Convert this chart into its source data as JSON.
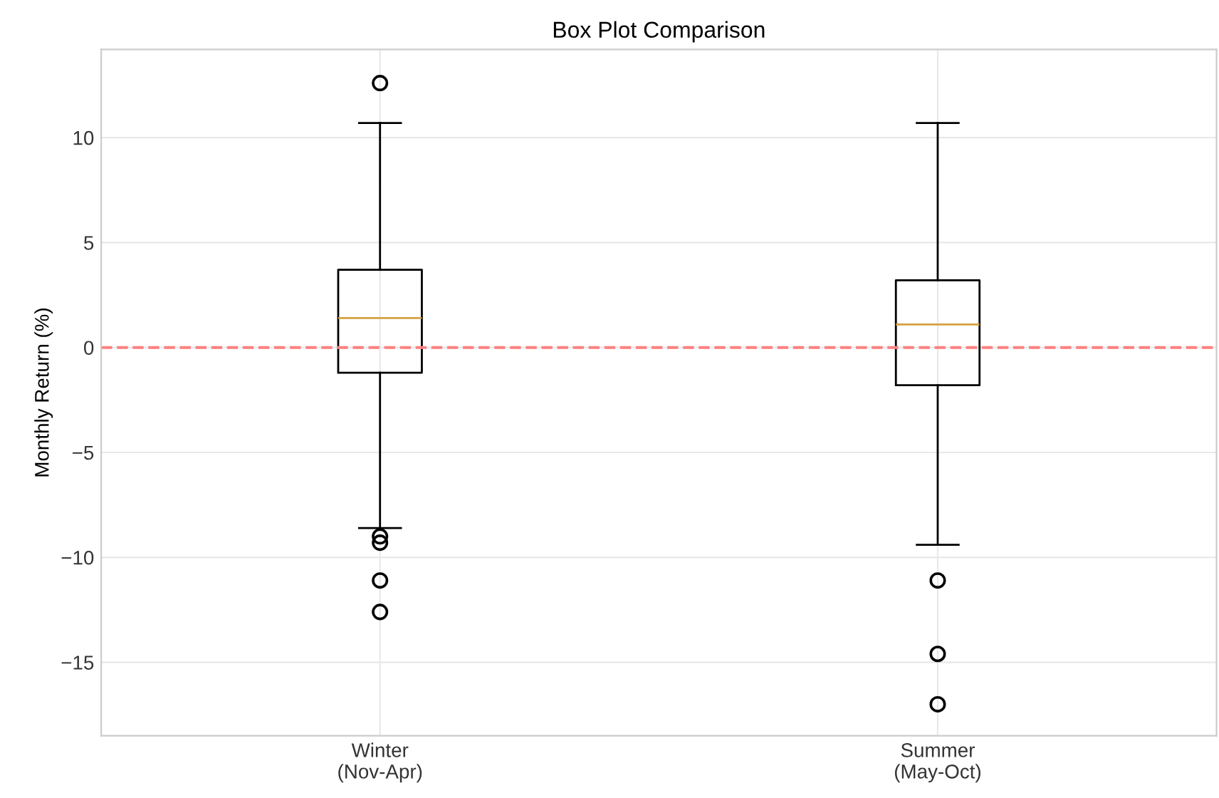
{
  "chart_data": {
    "type": "box",
    "title": "Box Plot Comparison",
    "ylabel": "Monthly Return (%)",
    "categories": [
      "Winter\n(Nov-Apr)",
      "Summer\n(May-Oct)"
    ],
    "boxes": [
      {
        "low": -8.6,
        "q1": -1.2,
        "median": 1.4,
        "q3": 3.7,
        "high": 10.7,
        "outliers": [
          12.6,
          -9.0,
          -9.3,
          -11.1,
          -12.6
        ]
      },
      {
        "low": -9.4,
        "q1": -1.8,
        "median": 1.1,
        "q3": 3.2,
        "high": 10.7,
        "outliers": [
          -11.1,
          -14.6,
          -17.0
        ]
      }
    ],
    "ylim": [
      -18.5,
      14.2
    ],
    "yticks": [
      {
        "value": -15,
        "label": "−15"
      },
      {
        "value": -10,
        "label": "−10"
      },
      {
        "value": -5,
        "label": "−5"
      },
      0,
      5,
      10
    ],
    "ref_lines": [
      {
        "axis": "y",
        "value": 0,
        "color": "#ff8080",
        "line_style": "dashed"
      }
    ],
    "grid": true
  }
}
